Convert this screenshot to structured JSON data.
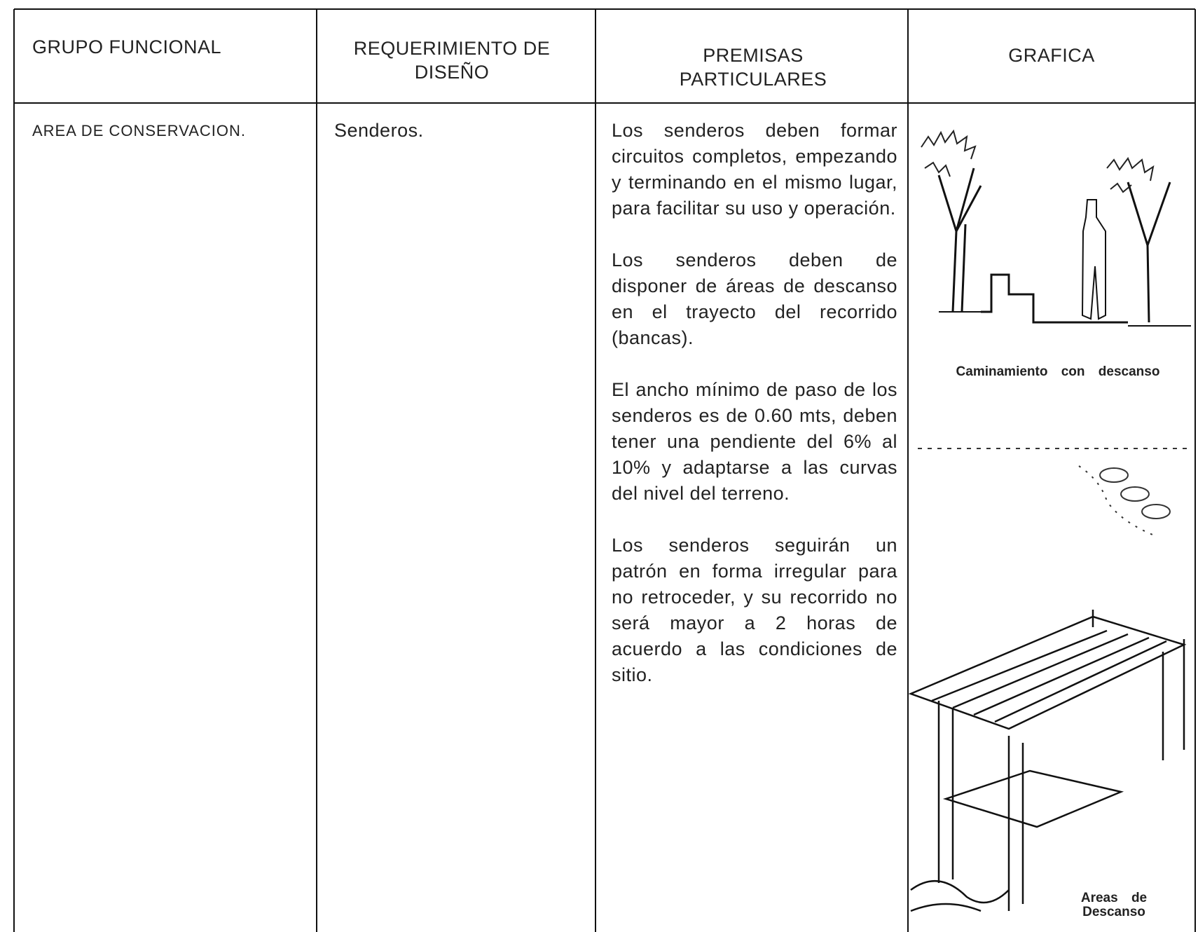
{
  "table": {
    "headers": [
      "GRUPO FUNCIONAL",
      "REQUERIMIENTO DE DISEÑO",
      "PREMISAS PARTICULARES",
      "GRAFICA"
    ],
    "rows": [
      [
        "AREA DE CONSERVACION.",
        "Senderos.",
        [
          "Los senderos deben formar circuitos completos, empezando y terminando en el mismo lugar, para facilitar su uso y operación.",
          "Los senderos deben de disponer de áreas de descanso en el trayecto del recorrido (bancas).",
          "El ancho mínimo de paso de los senderos es de 0.60 mts, deben tener una pendiente del 6% al 10% y adaptarse a las curvas del nivel del terreno.",
          "Los senderos seguirán un patrón en forma irregular para no retroceder, y su recorrido no será mayor a 2 horas de acuerdo a las condiciones de sitio."
        ],
        [
          "Caminamiento con descanso",
          "Areas de Descanso"
        ]
      ]
    ]
  }
}
